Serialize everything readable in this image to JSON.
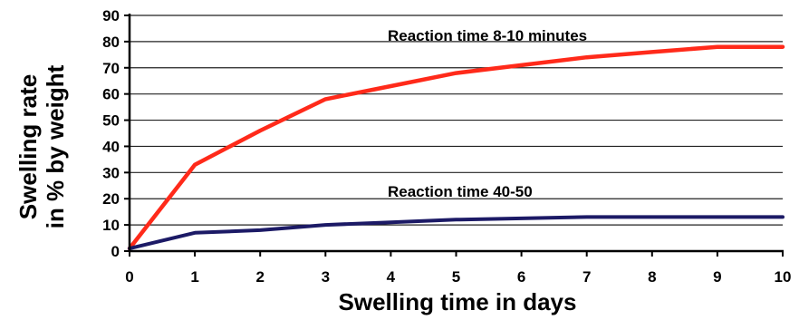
{
  "chart_data": {
    "type": "line",
    "xlabel": "Swelling time in days",
    "ylabel_lines": [
      "Swelling rate",
      "in % by weight"
    ],
    "xlim": [
      0,
      10
    ],
    "ylim": [
      0,
      90
    ],
    "x_ticks": [
      0,
      1,
      2,
      3,
      4,
      5,
      6,
      7,
      8,
      9,
      10
    ],
    "y_ticks": [
      0,
      10,
      20,
      30,
      40,
      50,
      60,
      70,
      80,
      90
    ],
    "grid": "horizontal",
    "legend": "inline labels",
    "series": [
      {
        "name": "Reaction time 8-10 minutes",
        "color": "#ff2a1a",
        "x": [
          0,
          1,
          2,
          3,
          4,
          5,
          6,
          7,
          8,
          9,
          10
        ],
        "y": [
          1,
          33,
          46,
          58,
          63,
          68,
          71,
          74,
          76,
          78,
          78
        ]
      },
      {
        "name": "Reaction time 40-50",
        "color": "#1c1a66",
        "x": [
          0,
          1,
          2,
          3,
          4,
          5,
          6,
          7,
          8,
          9,
          10
        ],
        "y": [
          1,
          7,
          8,
          10,
          11,
          12,
          12.5,
          13,
          13,
          13,
          13
        ]
      }
    ]
  }
}
